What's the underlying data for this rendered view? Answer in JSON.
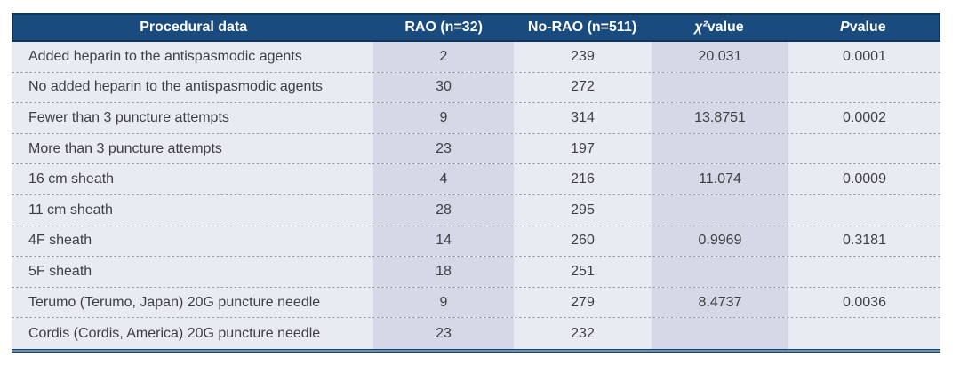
{
  "colors": {
    "header_bg": "#194b7f",
    "header_border": "#0f355e",
    "col_light": "#e9ebf2",
    "col_dark": "#d5d8e6",
    "dash": "#9aa0b0",
    "text": "#3e3f43",
    "rule": "#134775"
  },
  "table": {
    "header": {
      "col0": "Procedural data",
      "col1": "RAO (n=32)",
      "col2": "No-RAO (n=511)",
      "col3_symbol": "χ²",
      "col3_rest": " value",
      "col4_symbol": "P",
      "col4_rest": " value"
    },
    "rows": [
      {
        "label": "Added heparin to the antispasmodic agents",
        "rao": "2",
        "no_rao": "239",
        "chi": "20.031",
        "p": "0.0001"
      },
      {
        "label": "No added heparin to the antispasmodic agents",
        "rao": "30",
        "no_rao": "272",
        "chi": "",
        "p": ""
      },
      {
        "label": "Fewer than 3 puncture attempts",
        "rao": "9",
        "no_rao": "314",
        "chi": "13.8751",
        "p": "0.0002"
      },
      {
        "label": "More than 3 puncture attempts",
        "rao": "23",
        "no_rao": "197",
        "chi": "",
        "p": ""
      },
      {
        "label": "16 cm sheath",
        "rao": "4",
        "no_rao": "216",
        "chi": "11.074",
        "p": "0.0009"
      },
      {
        "label": "11 cm sheath",
        "rao": "28",
        "no_rao": "295",
        "chi": "",
        "p": ""
      },
      {
        "label": "4F sheath",
        "rao": "14",
        "no_rao": "260",
        "chi": "0.9969",
        "p": "0.3181"
      },
      {
        "label": "5F sheath",
        "rao": "18",
        "no_rao": "251",
        "chi": "",
        "p": ""
      },
      {
        "label": "Terumo (Terumo, Japan) 20G puncture needle",
        "rao": "9",
        "no_rao": "279",
        "chi": "8.4737",
        "p": "0.0036"
      },
      {
        "label": "Cordis (Cordis, America) 20G puncture needle",
        "rao": "23",
        "no_rao": "232",
        "chi": "",
        "p": ""
      }
    ]
  }
}
